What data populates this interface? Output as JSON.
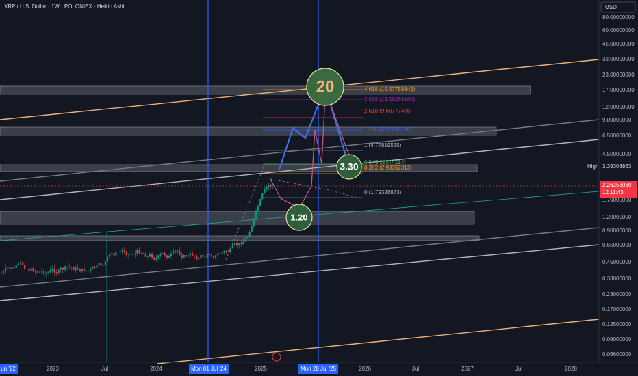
{
  "header": {
    "title": "XRP / U.S. Dollar · 1W · POLONIEX · Heikin Ashi",
    "currency": "USD"
  },
  "price_axis": [
    "80.00000000",
    "60.00000000",
    "45.00000000",
    "33.00000000",
    "23.00000000",
    "17.00000000",
    "12.00000000",
    "9.00000000",
    "6.50000000",
    "4.50000000",
    "1.70000000",
    "1.20000000",
    "0.90000000",
    "0.65000000",
    "0.45000000",
    "0.33000000",
    "0.23000000",
    "0.17000000",
    "0.12500000",
    "0.09000000",
    "0.06600000"
  ],
  "high": {
    "label": "High",
    "price": "3.39308863"
  },
  "last": {
    "price": "2.26253030",
    "countdown": "12:11:43"
  },
  "time_axis": [
    "un '22",
    "2023",
    "Jul",
    "2024",
    "Mon 01 Jul '24",
    "2025",
    "Mon 28 Jul '25",
    "2026",
    "Jul",
    "2027",
    "Jul",
    "2028"
  ],
  "fib_levels": [
    "4.618 (15.57758842)",
    "3.618 (12.59268160)",
    "2.618 (9.60777478)",
    "1.618 (6.62286796)",
    "1 (4.77819555)",
    "0.5 (3.28574214)",
    "0.382 (2.93352313)",
    "0 (1.79328873)"
  ],
  "targets": [
    "20",
    "3.30",
    "1.20"
  ]
}
